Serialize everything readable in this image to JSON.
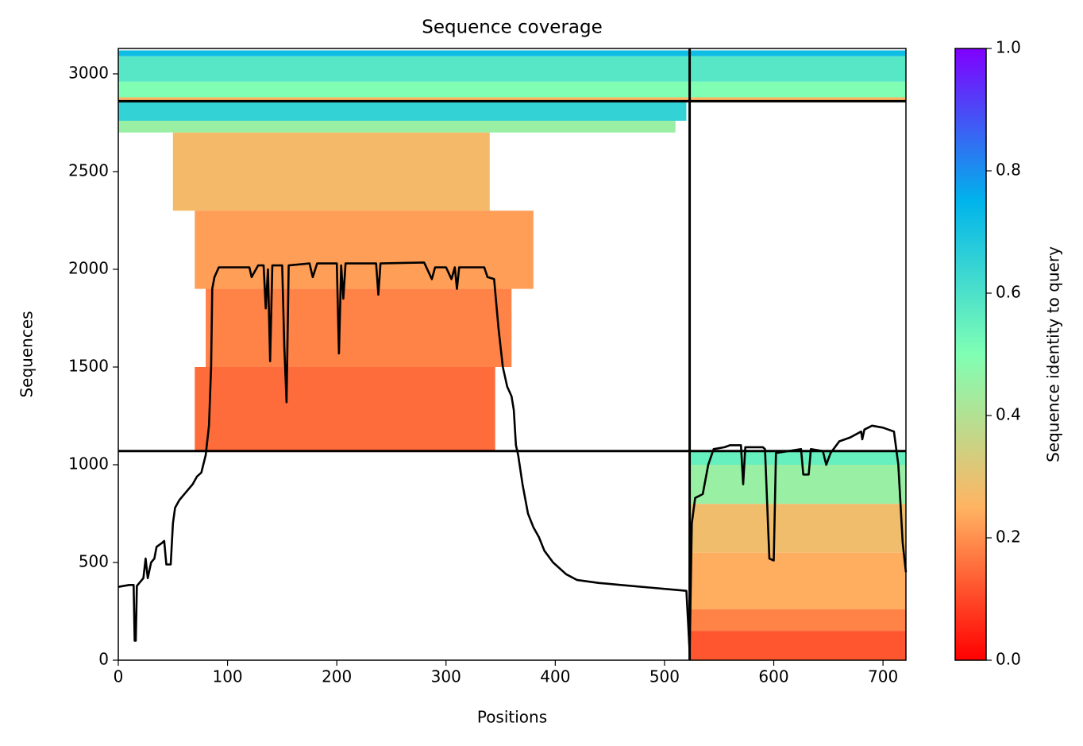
{
  "chart_data": {
    "type": "coverage",
    "title": "Sequence coverage",
    "x_label": "Positions",
    "y_label": "Sequences",
    "xlim": [
      0,
      721
    ],
    "ylim": [
      0,
      3130
    ],
    "xticks": [
      0,
      100,
      200,
      300,
      400,
      500,
      600,
      700
    ],
    "yticks": [
      0,
      500,
      1000,
      1500,
      2000,
      2500,
      3000
    ],
    "colorbar": {
      "label": "Sequence identity to query",
      "lim": [
        0,
        1
      ],
      "ticks": [
        {
          "value": 0,
          "label": "0.0"
        },
        {
          "value": 0.2,
          "label": "0.2"
        },
        {
          "value": 0.4,
          "label": "0.4"
        },
        {
          "value": 0.6,
          "label": "0.6"
        },
        {
          "value": 0.8,
          "label": "0.8"
        },
        {
          "value": 1,
          "label": "1.0"
        }
      ],
      "colormap": [
        "#ff0000",
        "#ffb462",
        "#80ffb4",
        "#00b4eb",
        "#8000ff"
      ]
    },
    "bands": [
      {
        "x": [
          0,
          721
        ],
        "y": [
          3090,
          3120
        ],
        "identity": 0.72
      },
      {
        "x": [
          0,
          721
        ],
        "y": [
          2960,
          3090
        ],
        "identity": 0.58
      },
      {
        "x": [
          0,
          721
        ],
        "y": [
          2880,
          2960
        ],
        "identity": 0.5
      },
      {
        "x": [
          0,
          721
        ],
        "y": [
          2860,
          2880
        ],
        "identity": 0.25
      },
      {
        "x": [
          0,
          520
        ],
        "y": [
          2760,
          2860
        ],
        "identity": 0.65
      },
      {
        "x": [
          0,
          510
        ],
        "y": [
          2700,
          2760
        ],
        "identity": 0.45
      },
      {
        "x": [
          50,
          340
        ],
        "y": [
          2300,
          2700
        ],
        "identity": 0.27
      },
      {
        "x": [
          70,
          380
        ],
        "y": [
          1900,
          2300
        ],
        "identity": 0.22
      },
      {
        "x": [
          80,
          360
        ],
        "y": [
          1500,
          1900
        ],
        "identity": 0.18
      },
      {
        "x": [
          70,
          345
        ],
        "y": [
          1070,
          1500
        ],
        "identity": 0.15
      },
      {
        "x": [
          523,
          721
        ],
        "y": [
          1000,
          1070
        ],
        "identity": 0.55
      },
      {
        "x": [
          523,
          721
        ],
        "y": [
          800,
          1000
        ],
        "identity": 0.45
      },
      {
        "x": [
          523,
          721
        ],
        "y": [
          550,
          800
        ],
        "identity": 0.28
      },
      {
        "x": [
          523,
          721
        ],
        "y": [
          260,
          550
        ],
        "identity": 0.24
      },
      {
        "x": [
          523,
          721
        ],
        "y": [
          150,
          260
        ],
        "identity": 0.18
      },
      {
        "x": [
          523,
          721
        ],
        "y": [
          0,
          150
        ],
        "identity": 0.12
      }
    ],
    "vlines": [
      523
    ],
    "hlines": [
      1070,
      2860
    ],
    "line_color": "#000000",
    "coverage": {
      "x": [
        0,
        10,
        14,
        15,
        16,
        17,
        20,
        23,
        25,
        27,
        30,
        33,
        35,
        40,
        42,
        44,
        48,
        50,
        52,
        56,
        62,
        68,
        72,
        76,
        80,
        83,
        85,
        86,
        88,
        92,
        120,
        122,
        128,
        133,
        135,
        137,
        139,
        141,
        150,
        152,
        154,
        156,
        175,
        178,
        182,
        200,
        202,
        204,
        206,
        208,
        236,
        238,
        240,
        280,
        287,
        290,
        300,
        305,
        308,
        310,
        312,
        335,
        338,
        344,
        348,
        352,
        356,
        360,
        362,
        364,
        366,
        370,
        375,
        380,
        385,
        390,
        398,
        410,
        420,
        440,
        460,
        490,
        510,
        520,
        522,
        523,
        525,
        528,
        535,
        540,
        545,
        555,
        560,
        570,
        572,
        574,
        590,
        592,
        596,
        600,
        602,
        625,
        627,
        632,
        634,
        645,
        648,
        652,
        660,
        670,
        680,
        681,
        683,
        690,
        700,
        710,
        714,
        718,
        721
      ],
      "y": [
        375,
        385,
        385,
        100,
        100,
        380,
        400,
        420,
        520,
        420,
        500,
        520,
        580,
        600,
        610,
        490,
        490,
        700,
        780,
        820,
        860,
        900,
        940,
        960,
        1050,
        1200,
        1500,
        1900,
        1960,
        2010,
        2010,
        1960,
        2020,
        2020,
        1800,
        2000,
        1530,
        2020,
        2020,
        1600,
        1320,
        2020,
        2030,
        1960,
        2030,
        2030,
        1570,
        2020,
        1850,
        2030,
        2030,
        1870,
        2030,
        2035,
        1950,
        2010,
        2010,
        1950,
        2010,
        1900,
        2010,
        2010,
        1960,
        1950,
        1700,
        1500,
        1400,
        1350,
        1280,
        1100,
        1050,
        900,
        750,
        680,
        630,
        560,
        500,
        440,
        410,
        395,
        385,
        370,
        360,
        355,
        150,
        40,
        700,
        830,
        850,
        1000,
        1080,
        1090,
        1100,
        1100,
        900,
        1090,
        1090,
        1080,
        520,
        510,
        1060,
        1080,
        950,
        950,
        1080,
        1070,
        1000,
        1060,
        1120,
        1140,
        1170,
        1130,
        1180,
        1200,
        1190,
        1170,
        1000,
        600,
        450
      ]
    }
  }
}
